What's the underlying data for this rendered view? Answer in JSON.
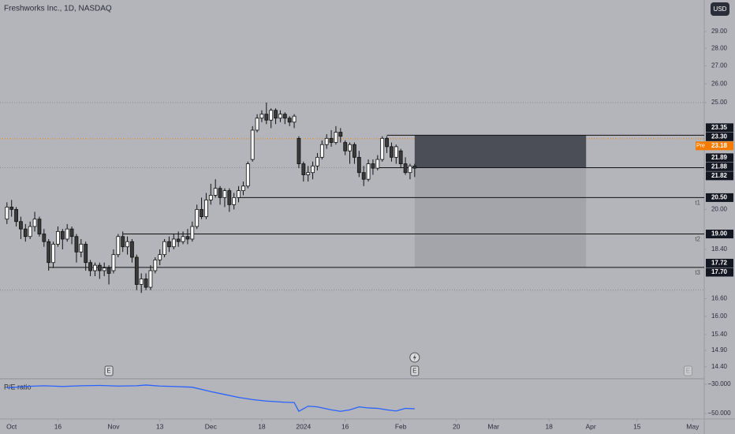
{
  "title": "Freshworks Inc., 1D, NASDAQ",
  "currency": "USD",
  "chart_data": {
    "type": "candlestick",
    "log_scale": true,
    "ylim": [
      14.09,
      30.97
    ],
    "xlim": [
      -1.5,
      150.5
    ],
    "yticks": [
      {
        "value": 29,
        "label": "29.00"
      },
      {
        "value": 28,
        "label": "28.00"
      },
      {
        "value": 27,
        "label": "27.00"
      },
      {
        "value": 26,
        "label": "26.00"
      },
      {
        "value": 25,
        "label": "25.00"
      },
      {
        "value": 20,
        "label": "20.00"
      },
      {
        "value": 18.4,
        "label": "18.40"
      },
      {
        "value": 16.6,
        "label": "16.60"
      },
      {
        "value": 16,
        "label": "16.00"
      },
      {
        "value": 15.4,
        "label": "15.40"
      },
      {
        "value": 14.9,
        "label": "14.90"
      },
      {
        "value": 14.4,
        "label": "14.40"
      }
    ],
    "xticks": [
      {
        "value": 1,
        "label": "Oct"
      },
      {
        "value": 11,
        "label": "16"
      },
      {
        "value": 23,
        "label": "Nov"
      },
      {
        "value": 33,
        "label": "13"
      },
      {
        "value": 44,
        "label": "Dec"
      },
      {
        "value": 55,
        "label": "18"
      },
      {
        "value": 64,
        "label": "2024"
      },
      {
        "value": 73,
        "label": "16"
      },
      {
        "value": 85,
        "label": "Feb"
      },
      {
        "value": 97,
        "label": "20"
      },
      {
        "value": 105,
        "label": "Mar"
      },
      {
        "value": 117,
        "label": "18"
      },
      {
        "value": 126,
        "label": "Apr"
      },
      {
        "value": 136,
        "label": "15"
      },
      {
        "value": 148,
        "label": "May"
      }
    ],
    "up_color": "#ffffff",
    "down_color": "#3a3a3a",
    "open": [
      19.6,
      20.1,
      20.0,
      19.5,
      19.2,
      18.9,
      19.3,
      19.6,
      19.0,
      18.7,
      17.9,
      18.6,
      19.1,
      18.8,
      19.2,
      18.9,
      18.3,
      18.6,
      17.9,
      17.6,
      17.8,
      17.6,
      17.7,
      17.6,
      18.2,
      18.9,
      18.5,
      18.7,
      18.1,
      17.1,
      17.3,
      17.0,
      17.6,
      18.0,
      18.2,
      18.7,
      18.5,
      18.8,
      18.7,
      18.9,
      18.8,
      19.3,
      20.0,
      19.7,
      20.4,
      20.6,
      20.9,
      20.5,
      20.8,
      20.2,
      20.5,
      20.8,
      21.0,
      22.2,
      23.6,
      24.2,
      24.4,
      24.1,
      24.6,
      24.2,
      24.4,
      24.2,
      24.0,
      23.2,
      22.0,
      21.5,
      21.6,
      21.9,
      22.3,
      22.9,
      23.2,
      23.0,
      23.5,
      23.0,
      22.6,
      22.9,
      22.3,
      21.6,
      21.3,
      22.0,
      21.8,
      22.2,
      23.2,
      22.8,
      22.3,
      22.6,
      22.0,
      21.6,
      21.9
    ],
    "high": [
      20.3,
      20.4,
      20.1,
      19.7,
      19.4,
      19.5,
      19.9,
      19.7,
      19.2,
      18.8,
      18.7,
      19.3,
      19.2,
      19.4,
      19.3,
      19.0,
      18.8,
      18.7,
      18.0,
      17.9,
      17.9,
      17.9,
      17.8,
      18.4,
      19.0,
      19.1,
      18.9,
      18.8,
      18.2,
      17.5,
      17.5,
      17.8,
      18.1,
      18.4,
      18.8,
      18.9,
      19.0,
      19.1,
      19.1,
      19.2,
      19.5,
      20.2,
      20.5,
      20.7,
      21.1,
      21.3,
      21.0,
      20.9,
      20.9,
      20.7,
      21.0,
      21.2,
      22.1,
      23.8,
      24.4,
      24.6,
      25.0,
      24.7,
      24.7,
      24.6,
      24.5,
      24.3,
      24.4,
      23.3,
      22.1,
      21.9,
      22.1,
      22.5,
      23.1,
      23.4,
      23.6,
      23.8,
      23.7,
      23.1,
      23.0,
      23.0,
      22.6,
      21.9,
      22.2,
      22.2,
      22.4,
      23.3,
      23.3,
      23.0,
      22.9,
      22.7,
      22.3,
      22.0,
      22.0
    ],
    "low": [
      19.4,
      19.7,
      19.3,
      18.8,
      18.7,
      18.8,
      19.1,
      18.9,
      18.5,
      17.6,
      17.7,
      18.5,
      18.4,
      18.7,
      18.6,
      17.9,
      18.1,
      17.6,
      17.4,
      17.4,
      17.3,
      17.4,
      17.1,
      17.5,
      18.1,
      18.3,
      18.2,
      17.9,
      16.9,
      16.8,
      16.9,
      16.9,
      17.5,
      17.8,
      18.1,
      18.3,
      18.4,
      18.5,
      18.6,
      18.6,
      18.7,
      19.2,
      19.6,
      19.6,
      20.2,
      20.5,
      20.2,
      20.1,
      19.9,
      20.0,
      20.3,
      20.6,
      20.9,
      22.1,
      23.5,
      24.0,
      23.9,
      23.7,
      23.9,
      24.0,
      23.9,
      23.8,
      23.7,
      21.8,
      21.2,
      21.2,
      21.3,
      21.7,
      22.2,
      22.7,
      22.8,
      22.9,
      23.0,
      22.4,
      22.0,
      22.0,
      21.4,
      21.0,
      21.2,
      21.5,
      21.7,
      22.1,
      22.5,
      22.1,
      22.0,
      21.8,
      21.5,
      21.3,
      21.4
    ],
    "close": [
      20.1,
      20.0,
      19.5,
      19.2,
      18.9,
      19.3,
      19.6,
      19.0,
      18.7,
      17.9,
      18.6,
      19.1,
      18.8,
      19.2,
      18.9,
      18.3,
      18.6,
      17.9,
      17.6,
      17.8,
      17.6,
      17.7,
      17.5,
      18.2,
      18.9,
      18.5,
      18.7,
      18.1,
      17.1,
      17.3,
      17.0,
      17.6,
      18.0,
      18.2,
      18.7,
      18.5,
      18.8,
      18.7,
      18.9,
      18.8,
      19.3,
      20.0,
      19.7,
      20.4,
      20.6,
      20.9,
      20.5,
      20.8,
      20.2,
      20.5,
      20.8,
      21.0,
      22.0,
      23.6,
      24.2,
      24.4,
      24.1,
      24.6,
      24.2,
      24.4,
      24.2,
      24.0,
      24.3,
      22.0,
      21.5,
      21.6,
      21.9,
      22.3,
      22.9,
      23.2,
      23.0,
      23.5,
      23.3,
      22.6,
      22.9,
      22.3,
      21.6,
      21.3,
      22.0,
      21.8,
      22.2,
      23.2,
      22.8,
      22.3,
      22.8,
      22.0,
      21.6,
      21.9,
      21.8
    ],
    "levels": [
      {
        "value": 23.35,
        "from": 82
      },
      {
        "value": 21.82,
        "from": 80
      },
      {
        "value": 20.5,
        "from": 50,
        "tag": "t1"
      },
      {
        "value": 19.0,
        "from": 25,
        "tag": "t2"
      },
      {
        "value": 17.72,
        "from": 9,
        "tag": "t3"
      }
    ],
    "position": {
      "from": 88,
      "to": 125,
      "top": 23.35,
      "entry": 21.82,
      "bottom": 17.72
    },
    "dotted_lines": [
      25.0,
      21.82,
      16.9
    ],
    "pre_market": {
      "label": "Pre",
      "value": 23.18,
      "color": "#f57c00"
    },
    "price_labels": [
      {
        "value": 23.35,
        "label": "23.35"
      },
      {
        "value": 23.3,
        "label": "23.30"
      },
      {
        "value": 23.18,
        "label": "23.18",
        "color": "#f57c00"
      },
      {
        "value": 21.89,
        "label": "21.89"
      },
      {
        "value": 21.88,
        "label": "21.88"
      },
      {
        "value": 21.82,
        "label": "21.82"
      },
      {
        "value": 20.5,
        "label": "20.50"
      },
      {
        "value": 19.0,
        "label": "19.00"
      },
      {
        "value": 17.72,
        "label": "17.72"
      },
      {
        "value": 17.7,
        "label": "17.70"
      }
    ],
    "events": [
      {
        "at": 22,
        "label": "E"
      },
      {
        "at": 88,
        "label": "E"
      },
      {
        "at": 147,
        "label": "E",
        "faded": true
      }
    ],
    "flash_at": 88,
    "pe": {
      "title": "P/E ratio",
      "color": "#2962ff",
      "ylim": [
        -53.25,
        -26.76
      ],
      "yticks": [
        {
          "value": -30,
          "label": "−30.000"
        },
        {
          "value": -50,
          "label": "−50.000"
        }
      ],
      "x": [
        0,
        4,
        8,
        12,
        16,
        20,
        24,
        28,
        30,
        33,
        36,
        40,
        44,
        47,
        50,
        53,
        56,
        60,
        62,
        63,
        65,
        67,
        70,
        72,
        74,
        76,
        78,
        80,
        82,
        84,
        86,
        88
      ],
      "values": [
        -32.5,
        -31.5,
        -31,
        -31.5,
        -31,
        -30.8,
        -31.2,
        -31,
        -30.5,
        -31.2,
        -31.5,
        -32,
        -35,
        -37,
        -39,
        -40.5,
        -41.5,
        -42.3,
        -42.5,
        -48.5,
        -45,
        -45.5,
        -47.5,
        -48.5,
        -47.5,
        -45.5,
        -46.2,
        -46.5,
        -47.5,
        -48.3,
        -46.5,
        -46.8
      ]
    }
  }
}
